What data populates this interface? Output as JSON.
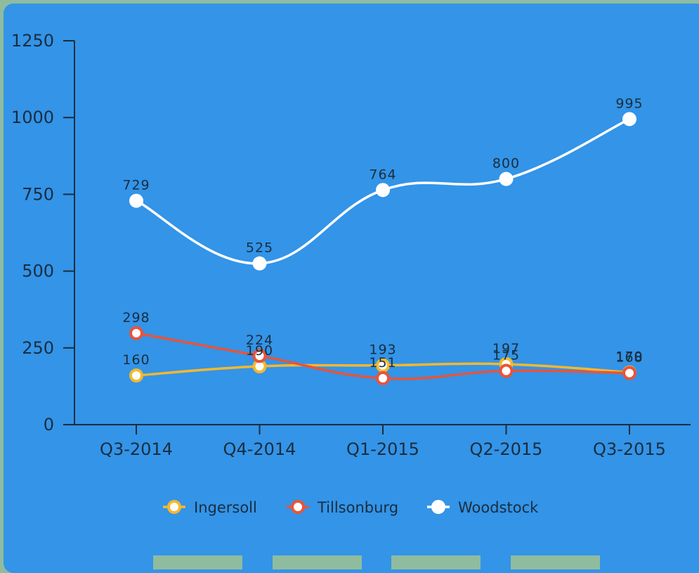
{
  "chart_data": {
    "type": "line",
    "categories": [
      "Q3-2014",
      "Q4-2014",
      "Q1-2015",
      "Q2-2015",
      "Q3-2015"
    ],
    "series": [
      {
        "name": "Ingersoll",
        "color": "#f5b82e",
        "values": [
          160,
          190,
          193,
          197,
          170
        ]
      },
      {
        "name": "Tillsonburg",
        "color": "#e8543a",
        "values": [
          298,
          224,
          151,
          175,
          168
        ]
      },
      {
        "name": "Woodstock",
        "color": "#ffffff",
        "values": [
          729,
          525,
          764,
          800,
          995
        ]
      }
    ],
    "yticks": [
      0,
      250,
      500,
      750,
      1000,
      1250
    ],
    "ylim": [
      0,
      1250
    ],
    "legend_position": "bottom",
    "grid": false
  },
  "colors": {
    "panel": "#3394e8",
    "background": "#8fbc9f",
    "axis": "#1a2d3d"
  }
}
